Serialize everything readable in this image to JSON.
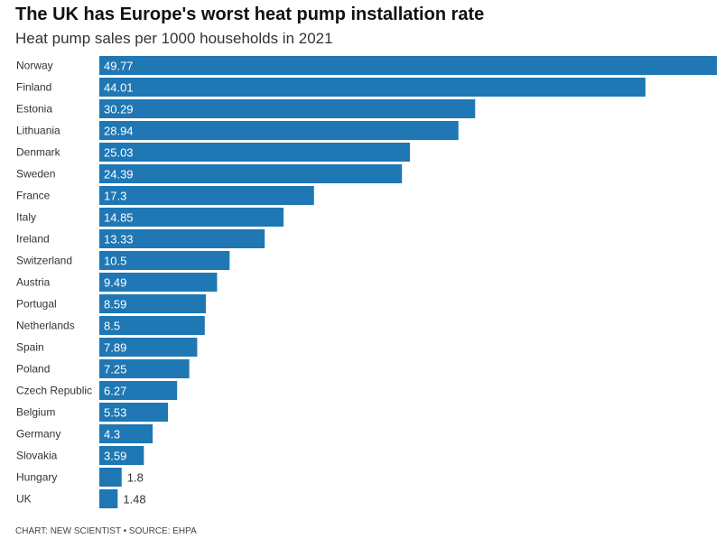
{
  "chart_data": {
    "type": "bar",
    "orientation": "horizontal",
    "title": "The UK has Europe's worst heat pump installation rate",
    "subtitle": "Heat pump sales per 1000 households in 2021",
    "categories": [
      "Norway",
      "Finland",
      "Estonia",
      "Lithuania",
      "Denmark",
      "Sweden",
      "France",
      "Italy",
      "Ireland",
      "Switzerland",
      "Austria",
      "Portugal",
      "Netherlands",
      "Spain",
      "Poland",
      "Czech Republic",
      "Belgium",
      "Germany",
      "Slovakia",
      "Hungary",
      "UK"
    ],
    "values": [
      49.77,
      44.01,
      30.29,
      28.94,
      25.03,
      24.39,
      17.3,
      14.85,
      13.33,
      10.5,
      9.49,
      8.59,
      8.5,
      7.89,
      7.25,
      6.27,
      5.53,
      4.3,
      3.59,
      1.8,
      1.48
    ],
    "value_labels": [
      "49.77",
      "44.01",
      "30.29",
      "28.94",
      "25.03",
      "24.39",
      "17.3",
      "14.85",
      "13.33",
      "10.5",
      "9.49",
      "8.59",
      "8.5",
      "7.89",
      "7.25",
      "6.27",
      "5.53",
      "4.3",
      "3.59",
      "1.8",
      "1.48"
    ],
    "xlim": [
      0,
      49.77
    ],
    "grid": false,
    "bar_color": "#1f77b4",
    "source": "CHART: NEW SCIENTIST • SOURCE: EHPA"
  }
}
